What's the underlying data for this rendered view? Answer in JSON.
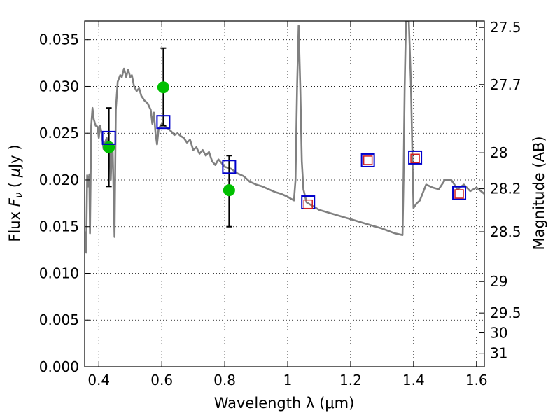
{
  "chart_data": {
    "type": "scatter",
    "xlabel": "Wavelength  λ (μm)",
    "ylabel": "Flux  Fν  ( μJy )",
    "y2label": "Magnitude (AB)",
    "xlim": [
      0.355,
      1.625
    ],
    "ylim": [
      0.0,
      0.037
    ],
    "grid": true,
    "x_ticks": [
      {
        "value": 0.4,
        "label": "0.4"
      },
      {
        "value": 0.6,
        "label": "0.6"
      },
      {
        "value": 0.8,
        "label": "0.8"
      },
      {
        "value": 1.0,
        "label": "1"
      },
      {
        "value": 1.2,
        "label": "1.2"
      },
      {
        "value": 1.4,
        "label": "1.4"
      },
      {
        "value": 1.6,
        "label": "1.6"
      }
    ],
    "y_ticks": [
      {
        "value": 0.0,
        "label": "0.000"
      },
      {
        "value": 0.005,
        "label": "0.005"
      },
      {
        "value": 0.01,
        "label": "0.010"
      },
      {
        "value": 0.015,
        "label": "0.015"
      },
      {
        "value": 0.02,
        "label": "0.020"
      },
      {
        "value": 0.025,
        "label": "0.025"
      },
      {
        "value": 0.03,
        "label": "0.030"
      },
      {
        "value": 0.035,
        "label": "0.035"
      }
    ],
    "mag_ticks": [
      {
        "value": 27.5,
        "label": "27.5"
      },
      {
        "value": 27.7,
        "label": "27.7"
      },
      {
        "value": 28.0,
        "label": "28"
      },
      {
        "value": 28.2,
        "label": "28.2"
      },
      {
        "value": 28.5,
        "label": "28.5"
      },
      {
        "value": 29.0,
        "label": "29"
      },
      {
        "value": 29.5,
        "label": "29.5"
      },
      {
        "value": 30.0,
        "label": "30"
      },
      {
        "value": 31.0,
        "label": "31"
      }
    ],
    "series": [
      {
        "kind": "line",
        "color": "#808080",
        "points": [
          [
            0.357,
            0.0145
          ],
          [
            0.36,
            0.0122
          ],
          [
            0.363,
            0.0205
          ],
          [
            0.366,
            0.0193
          ],
          [
            0.37,
            0.0206
          ],
          [
            0.372,
            0.0143
          ],
          [
            0.376,
            0.0258
          ],
          [
            0.38,
            0.0277
          ],
          [
            0.384,
            0.0265
          ],
          [
            0.39,
            0.0258
          ],
          [
            0.396,
            0.0257
          ],
          [
            0.4,
            0.0245
          ],
          [
            0.404,
            0.0258
          ],
          [
            0.408,
            0.0252
          ],
          [
            0.415,
            0.0233
          ],
          [
            0.42,
            0.024
          ],
          [
            0.425,
            0.0245
          ],
          [
            0.43,
            0.0235
          ],
          [
            0.435,
            0.0237
          ],
          [
            0.438,
            0.02
          ],
          [
            0.441,
            0.023
          ],
          [
            0.444,
            0.0233
          ],
          [
            0.45,
            0.0139
          ],
          [
            0.454,
            0.0275
          ],
          [
            0.46,
            0.0305
          ],
          [
            0.468,
            0.0312
          ],
          [
            0.473,
            0.031
          ],
          [
            0.48,
            0.0319
          ],
          [
            0.487,
            0.031
          ],
          [
            0.493,
            0.0318
          ],
          [
            0.5,
            0.031
          ],
          [
            0.505,
            0.0312
          ],
          [
            0.512,
            0.03
          ],
          [
            0.52,
            0.0295
          ],
          [
            0.528,
            0.0298
          ],
          [
            0.535,
            0.029
          ],
          [
            0.545,
            0.0285
          ],
          [
            0.555,
            0.0282
          ],
          [
            0.565,
            0.0275
          ],
          [
            0.57,
            0.026
          ],
          [
            0.575,
            0.0272
          ],
          [
            0.58,
            0.025
          ],
          [
            0.585,
            0.0238
          ],
          [
            0.59,
            0.0255
          ],
          [
            0.6,
            0.026
          ],
          [
            0.61,
            0.0258
          ],
          [
            0.62,
            0.0255
          ],
          [
            0.63,
            0.0252
          ],
          [
            0.64,
            0.0248
          ],
          [
            0.65,
            0.025
          ],
          [
            0.66,
            0.0247
          ],
          [
            0.67,
            0.0245
          ],
          [
            0.68,
            0.024
          ],
          [
            0.69,
            0.0243
          ],
          [
            0.7,
            0.0232
          ],
          [
            0.71,
            0.0235
          ],
          [
            0.72,
            0.0228
          ],
          [
            0.73,
            0.0232
          ],
          [
            0.74,
            0.0226
          ],
          [
            0.75,
            0.023
          ],
          [
            0.76,
            0.022
          ],
          [
            0.77,
            0.0216
          ],
          [
            0.78,
            0.0222
          ],
          [
            0.79,
            0.0218
          ],
          [
            0.8,
            0.0214
          ],
          [
            0.82,
            0.0212
          ],
          [
            0.84,
            0.0207
          ],
          [
            0.86,
            0.0204
          ],
          [
            0.88,
            0.0198
          ],
          [
            0.9,
            0.0195
          ],
          [
            0.92,
            0.0193
          ],
          [
            0.94,
            0.019
          ],
          [
            0.96,
            0.0187
          ],
          [
            0.98,
            0.0185
          ],
          [
            1.0,
            0.0182
          ],
          [
            1.01,
            0.018
          ],
          [
            1.02,
            0.0178
          ],
          [
            1.025,
            0.02
          ],
          [
            1.03,
            0.03
          ],
          [
            1.035,
            0.0365
          ],
          [
            1.04,
            0.03
          ],
          [
            1.045,
            0.022
          ],
          [
            1.05,
            0.019
          ],
          [
            1.06,
            0.0176
          ],
          [
            1.08,
            0.0172
          ],
          [
            1.1,
            0.0168
          ],
          [
            1.15,
            0.0163
          ],
          [
            1.2,
            0.0158
          ],
          [
            1.25,
            0.0153
          ],
          [
            1.3,
            0.0148
          ],
          [
            1.34,
            0.0143
          ],
          [
            1.365,
            0.0141
          ],
          [
            1.368,
            0.02
          ],
          [
            1.372,
            0.03
          ],
          [
            1.376,
            0.037
          ],
          [
            1.385,
            0.037
          ],
          [
            1.392,
            0.03
          ],
          [
            1.398,
            0.02
          ],
          [
            1.4,
            0.017
          ],
          [
            1.41,
            0.0175
          ],
          [
            1.42,
            0.0178
          ],
          [
            1.44,
            0.0195
          ],
          [
            1.46,
            0.0192
          ],
          [
            1.48,
            0.019
          ],
          [
            1.5,
            0.02
          ],
          [
            1.52,
            0.02
          ],
          [
            1.54,
            0.019
          ],
          [
            1.56,
            0.0195
          ],
          [
            1.58,
            0.0188
          ],
          [
            1.6,
            0.0192
          ],
          [
            1.625,
            0.0185
          ]
        ]
      },
      {
        "kind": "errorbar",
        "color": "#000000",
        "points": [
          {
            "x": 0.432,
            "y": 0.0235,
            "low": 0.0193,
            "high": 0.0277
          },
          {
            "x": 0.605,
            "y": 0.0299,
            "low": 0.0258,
            "high": 0.0341
          },
          {
            "x": 0.814,
            "y": 0.0189,
            "low": 0.015,
            "high": 0.0226
          }
        ]
      },
      {
        "kind": "marker",
        "marker": "circle",
        "color": "#00c000",
        "points": [
          [
            0.432,
            0.0235
          ],
          [
            0.605,
            0.0299
          ],
          [
            0.814,
            0.0189
          ]
        ]
      },
      {
        "kind": "marker",
        "marker": "square-large",
        "color": "#0000cc",
        "points": [
          [
            0.432,
            0.0245
          ],
          [
            0.605,
            0.0262
          ],
          [
            0.814,
            0.0214
          ],
          [
            1.065,
            0.0176
          ],
          [
            1.255,
            0.0221
          ],
          [
            1.405,
            0.0224
          ],
          [
            1.545,
            0.0186
          ]
        ]
      },
      {
        "kind": "marker",
        "marker": "square-small",
        "color": "#d02020",
        "points": [
          [
            1.065,
            0.0174
          ],
          [
            1.255,
            0.0221
          ],
          [
            1.405,
            0.0223
          ],
          [
            1.545,
            0.0185
          ]
        ]
      }
    ]
  }
}
